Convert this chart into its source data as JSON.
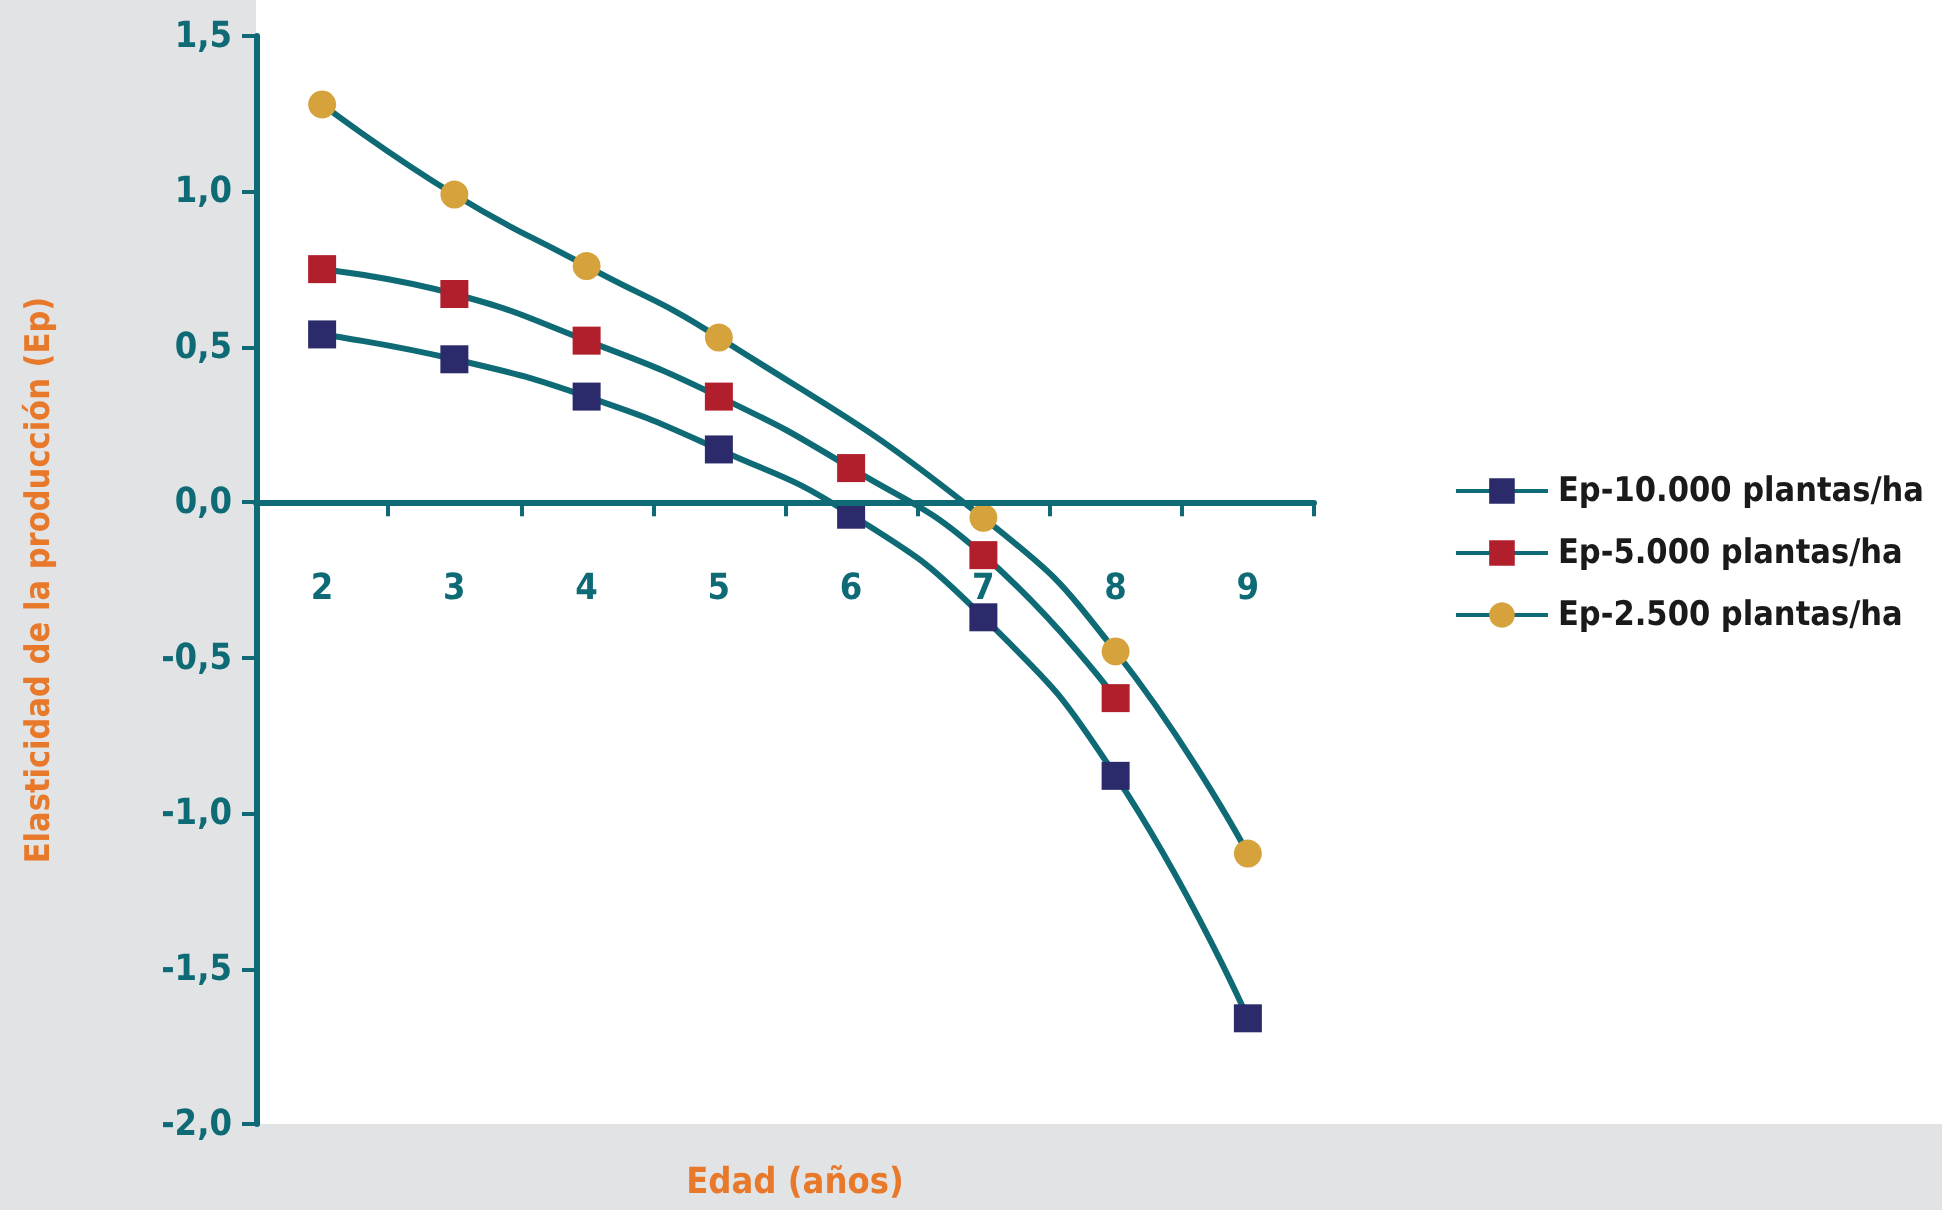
{
  "chart_data": {
    "type": "line",
    "xlabel": "Edad (años)",
    "ylabel": "Elasticidad de la producción (Ep)",
    "categories": [
      "2",
      "3",
      "4",
      "5",
      "6",
      "7",
      "8",
      "9"
    ],
    "series": [
      {
        "name": "Ep-10.000 plantas/ha",
        "color": "#2b2a6b",
        "marker": "square",
        "values": [
          0.54,
          0.46,
          0.34,
          0.17,
          -0.04,
          -0.37,
          -0.88,
          -1.66
        ]
      },
      {
        "name": "Ep-5.000 plantas/ha",
        "color": "#b01f2b",
        "marker": "square",
        "values": [
          0.75,
          0.67,
          0.52,
          0.34,
          0.11,
          -0.17,
          -0.63,
          null
        ]
      },
      {
        "name": "Ep-2.500 plantas/ha",
        "color": "#d6a23c",
        "marker": "circle",
        "values": [
          1.28,
          0.99,
          0.76,
          0.53,
          null,
          -0.05,
          -0.48,
          -1.13
        ]
      }
    ],
    "ylim": [
      -2.0,
      1.5
    ],
    "yticks": [
      {
        "value": -2.0,
        "label": "-2,0"
      },
      {
        "value": -1.5,
        "label": "-1,5"
      },
      {
        "value": -1.0,
        "label": "-1,0"
      },
      {
        "value": -0.5,
        "label": "-0,5"
      },
      {
        "value": 0,
        "label": "0,0"
      },
      {
        "value": 0.5,
        "label": "0,5"
      },
      {
        "value": 1.0,
        "label": "1,0"
      },
      {
        "value": 1.5,
        "label": "1,5"
      }
    ],
    "grid": false,
    "legend": "right",
    "line_style": "solid"
  }
}
